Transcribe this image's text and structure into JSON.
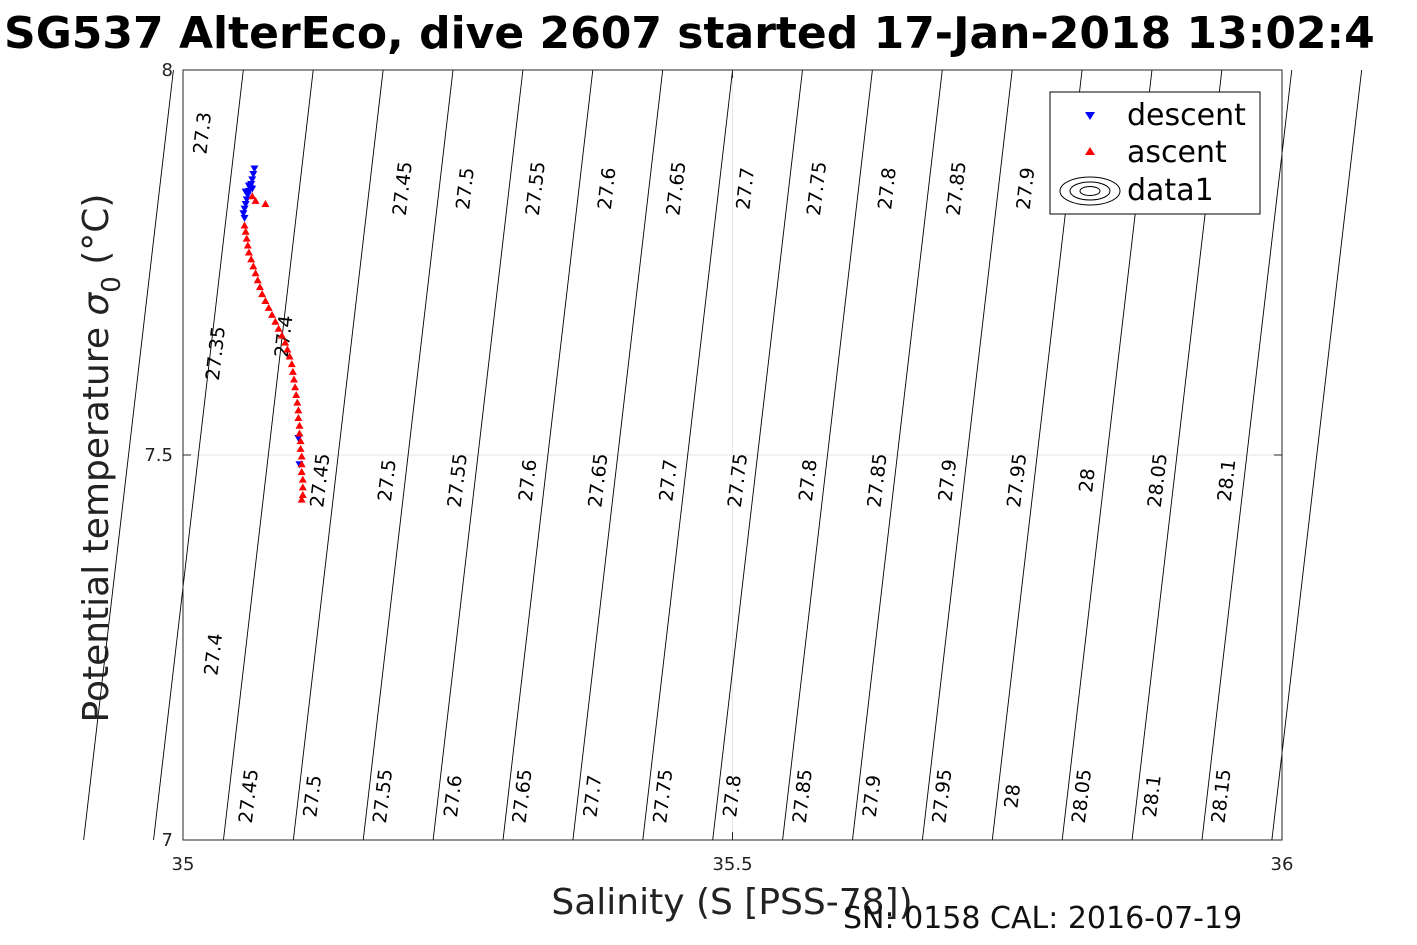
{
  "chart_data": {
    "type": "scatter",
    "title": "SG537 AlterEco, dive 2607 started 17-Jan-2018 13:02:4",
    "xlabel": "Salinity (S [PSS-78])",
    "ylabel_main": "Potential temperature ",
    "ylabel_sigma": "σ",
    "ylabel_sub": "0",
    "ylabel_unit": " (°C)",
    "xlim": [
      35,
      36
    ],
    "ylim": [
      7,
      8
    ],
    "xticks": [
      35,
      35.5,
      36
    ],
    "xtick_labels": [
      "35",
      "35.5",
      "36"
    ],
    "yticks": [
      7,
      7.5,
      8
    ],
    "ytick_labels": [
      "7",
      "7.5",
      "8"
    ],
    "grid": true,
    "legend_position": "top-right",
    "legend": [
      {
        "name": "descent",
        "marker": "triangle-down",
        "color": "#0000ff"
      },
      {
        "name": "ascent",
        "marker": "triangle-up",
        "color": "#ff0000"
      },
      {
        "name": "data1",
        "marker": "contour-icon",
        "color": "#000000"
      }
    ],
    "series": [
      {
        "name": "descent",
        "marker": "triangle-down",
        "color": "#0000ff",
        "points": [
          [
            35.065,
            7.872
          ],
          [
            35.064,
            7.865
          ],
          [
            35.063,
            7.858
          ],
          [
            35.062,
            7.852
          ],
          [
            35.061,
            7.847
          ],
          [
            35.06,
            7.843
          ],
          [
            35.059,
            7.838
          ],
          [
            35.058,
            7.832
          ],
          [
            35.057,
            7.826
          ],
          [
            35.056,
            7.82
          ],
          [
            35.055,
            7.814
          ],
          [
            35.056,
            7.808
          ],
          [
            35.057,
            7.842
          ],
          [
            35.06,
            7.85
          ],
          [
            35.063,
            7.846
          ],
          [
            35.105,
            7.522
          ],
          [
            35.106,
            7.488
          ]
        ]
      },
      {
        "name": "ascent",
        "marker": "triangle-up",
        "color": "#ff0000",
        "points": [
          [
            35.075,
            7.826
          ],
          [
            35.066,
            7.83
          ],
          [
            35.063,
            7.836
          ],
          [
            35.056,
            7.798
          ],
          [
            35.057,
            7.79
          ],
          [
            35.058,
            7.781
          ],
          [
            35.059,
            7.772
          ],
          [
            35.06,
            7.763
          ],
          [
            35.062,
            7.754
          ],
          [
            35.064,
            7.745
          ],
          [
            35.066,
            7.736
          ],
          [
            35.068,
            7.727
          ],
          [
            35.07,
            7.718
          ],
          [
            35.072,
            7.709
          ],
          [
            35.075,
            7.7
          ],
          [
            35.078,
            7.691
          ],
          [
            35.081,
            7.682
          ],
          [
            35.084,
            7.673
          ],
          [
            35.087,
            7.664
          ],
          [
            35.09,
            7.655
          ],
          [
            35.093,
            7.646
          ],
          [
            35.095,
            7.637
          ],
          [
            35.097,
            7.628
          ],
          [
            35.099,
            7.618
          ],
          [
            35.1,
            7.608
          ],
          [
            35.101,
            7.598
          ],
          [
            35.102,
            7.588
          ],
          [
            35.103,
            7.578
          ],
          [
            35.104,
            7.568
          ],
          [
            35.105,
            7.558
          ],
          [
            35.105,
            7.548
          ],
          [
            35.106,
            7.538
          ],
          [
            35.106,
            7.528
          ],
          [
            35.107,
            7.518
          ],
          [
            35.107,
            7.508
          ],
          [
            35.108,
            7.498
          ],
          [
            35.108,
            7.488
          ],
          [
            35.108,
            7.478
          ],
          [
            35.109,
            7.468
          ],
          [
            35.109,
            7.458
          ],
          [
            35.109,
            7.448
          ],
          [
            35.108,
            7.442
          ]
        ]
      }
    ],
    "contour_levels": [
      "27.3",
      "27.35",
      "27.4",
      "27.45",
      "27.5",
      "27.55",
      "27.6",
      "27.65",
      "27.7",
      "27.75",
      "27.8",
      "27.85",
      "27.9",
      "27.95",
      "28",
      "28.05",
      "28.1",
      "28.15"
    ],
    "contour_labels": [
      {
        "text": "27.3",
        "s": 35.018,
        "t": 7.918
      },
      {
        "text": "27.35",
        "s": 35.03,
        "t": 7.632
      },
      {
        "text": "27.4",
        "s": 35.028,
        "t": 7.241
      },
      {
        "text": "27.45",
        "s": 35.06,
        "t": 7.057
      },
      {
        "text": "27.4",
        "s": 35.092,
        "t": 7.654
      },
      {
        "text": "27.45",
        "s": 35.125,
        "t": 7.467
      },
      {
        "text": "27.5",
        "s": 35.118,
        "t": 7.057
      },
      {
        "text": "27.45",
        "s": 35.2,
        "t": 7.846
      },
      {
        "text": "27.5",
        "s": 35.186,
        "t": 7.467
      },
      {
        "text": "27.55",
        "s": 35.182,
        "t": 7.057
      },
      {
        "text": "27.5",
        "s": 35.257,
        "t": 7.846
      },
      {
        "text": "27.55",
        "s": 35.25,
        "t": 7.467
      },
      {
        "text": "27.6",
        "s": 35.246,
        "t": 7.057
      },
      {
        "text": "27.55",
        "s": 35.321,
        "t": 7.846
      },
      {
        "text": "27.6",
        "s": 35.314,
        "t": 7.467
      },
      {
        "text": "27.65",
        "s": 35.309,
        "t": 7.057
      },
      {
        "text": "27.6",
        "s": 35.386,
        "t": 7.846
      },
      {
        "text": "27.65",
        "s": 35.378,
        "t": 7.467
      },
      {
        "text": "27.7",
        "s": 35.373,
        "t": 7.057
      },
      {
        "text": "27.65",
        "s": 35.449,
        "t": 7.846
      },
      {
        "text": "27.7",
        "s": 35.442,
        "t": 7.467
      },
      {
        "text": "27.75",
        "s": 35.437,
        "t": 7.057
      },
      {
        "text": "27.7",
        "s": 35.512,
        "t": 7.846
      },
      {
        "text": "27.75",
        "s": 35.505,
        "t": 7.467
      },
      {
        "text": "27.8",
        "s": 35.5,
        "t": 7.057
      },
      {
        "text": "27.75",
        "s": 35.577,
        "t": 7.846
      },
      {
        "text": "27.8",
        "s": 35.569,
        "t": 7.467
      },
      {
        "text": "27.85",
        "s": 35.564,
        "t": 7.057
      },
      {
        "text": "27.8",
        "s": 35.641,
        "t": 7.846
      },
      {
        "text": "27.85",
        "s": 35.632,
        "t": 7.467
      },
      {
        "text": "27.9",
        "s": 35.627,
        "t": 7.057
      },
      {
        "text": "27.85",
        "s": 35.704,
        "t": 7.846
      },
      {
        "text": "27.9",
        "s": 35.696,
        "t": 7.467
      },
      {
        "text": "27.95",
        "s": 35.691,
        "t": 7.057
      },
      {
        "text": "27.9",
        "s": 35.767,
        "t": 7.846
      },
      {
        "text": "27.95",
        "s": 35.759,
        "t": 7.467
      },
      {
        "text": "28",
        "s": 35.755,
        "t": 7.057
      },
      {
        "text": "28",
        "s": 35.823,
        "t": 7.467
      },
      {
        "text": "28.05",
        "s": 35.818,
        "t": 7.057
      },
      {
        "text": "28.05",
        "s": 35.887,
        "t": 7.467
      },
      {
        "text": "28.1",
        "s": 35.882,
        "t": 7.057
      },
      {
        "text": "28.1",
        "s": 35.95,
        "t": 7.467
      },
      {
        "text": "28.15",
        "s": 35.945,
        "t": 7.057
      }
    ]
  },
  "footer": "SN: 0158  CAL: 2016-07-19"
}
